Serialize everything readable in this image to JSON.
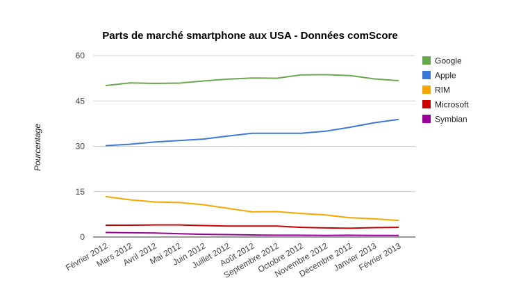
{
  "chart_data": {
    "type": "line",
    "title": "Parts de marché smartphone aux USA - Données comScore",
    "xlabel": "",
    "ylabel": "Pourcentage",
    "ylim": [
      0,
      60
    ],
    "yticks": [
      "0",
      "15",
      "30",
      "45",
      "60"
    ],
    "grid": true,
    "legend": "right",
    "categories": [
      "Février 2012",
      "Mars 2012",
      "Avril 2012",
      "Mai 2012",
      "Juin 2012",
      "Juillet 2012",
      "Août 2012",
      "Septembre 2012",
      "Octobre 2012",
      "Novembre 2012",
      "Décembre 2012",
      "Janvier 2013",
      "Février 2013"
    ],
    "series": [
      {
        "name": "Google",
        "color": "#6aa84f",
        "values": [
          50.1,
          51.0,
          50.8,
          50.9,
          51.6,
          52.2,
          52.6,
          52.5,
          53.6,
          53.7,
          53.4,
          52.3,
          51.7
        ]
      },
      {
        "name": "Apple",
        "color": "#3c78d8",
        "values": [
          30.2,
          30.7,
          31.4,
          31.9,
          32.4,
          33.4,
          34.3,
          34.3,
          34.3,
          35.0,
          36.3,
          37.8,
          38.9
        ]
      },
      {
        "name": "RIM",
        "color": "#f6a800",
        "values": [
          13.4,
          12.3,
          11.6,
          11.4,
          10.7,
          9.5,
          8.3,
          8.4,
          7.8,
          7.3,
          6.4,
          6.0,
          5.5
        ]
      },
      {
        "name": "Microsoft",
        "color": "#cc0000",
        "values": [
          3.9,
          3.9,
          4.0,
          4.0,
          3.8,
          3.6,
          3.6,
          3.6,
          3.2,
          3.0,
          2.9,
          3.1,
          3.2
        ]
      },
      {
        "name": "Symbian",
        "color": "#990099",
        "values": [
          1.5,
          1.4,
          1.3,
          1.1,
          0.9,
          0.8,
          0.7,
          0.6,
          0.6,
          0.5,
          0.6,
          0.5,
          0.5
        ]
      }
    ]
  }
}
